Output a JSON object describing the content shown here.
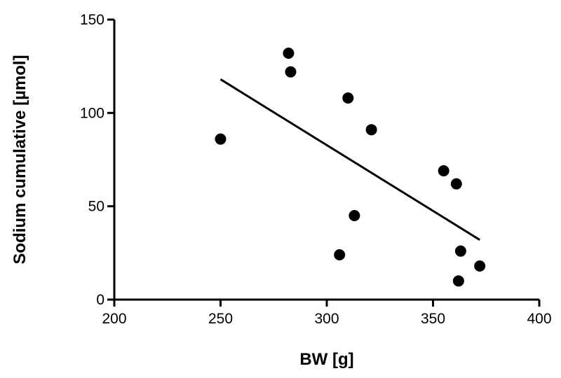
{
  "chart_data": {
    "type": "scatter",
    "title": "",
    "xlabel": "BW [g]",
    "ylabel": "Sodium cumulative [µmol]",
    "xlim": [
      200,
      400
    ],
    "ylim": [
      0,
      150
    ],
    "xticks": [
      200,
      250,
      300,
      350,
      400
    ],
    "yticks": [
      0,
      50,
      100,
      150
    ],
    "grid": false,
    "legend": "none",
    "marker_color": "#000000",
    "points": [
      {
        "x": 250,
        "y": 86
      },
      {
        "x": 282,
        "y": 132
      },
      {
        "x": 283,
        "y": 122
      },
      {
        "x": 306,
        "y": 24
      },
      {
        "x": 310,
        "y": 108
      },
      {
        "x": 313,
        "y": 45
      },
      {
        "x": 321,
        "y": 91
      },
      {
        "x": 355,
        "y": 69
      },
      {
        "x": 361,
        "y": 62
      },
      {
        "x": 362,
        "y": 10
      },
      {
        "x": 363,
        "y": 26
      },
      {
        "x": 372,
        "y": 18
      }
    ],
    "trendline": {
      "x": [
        250,
        372
      ],
      "y": [
        118,
        32
      ]
    }
  }
}
